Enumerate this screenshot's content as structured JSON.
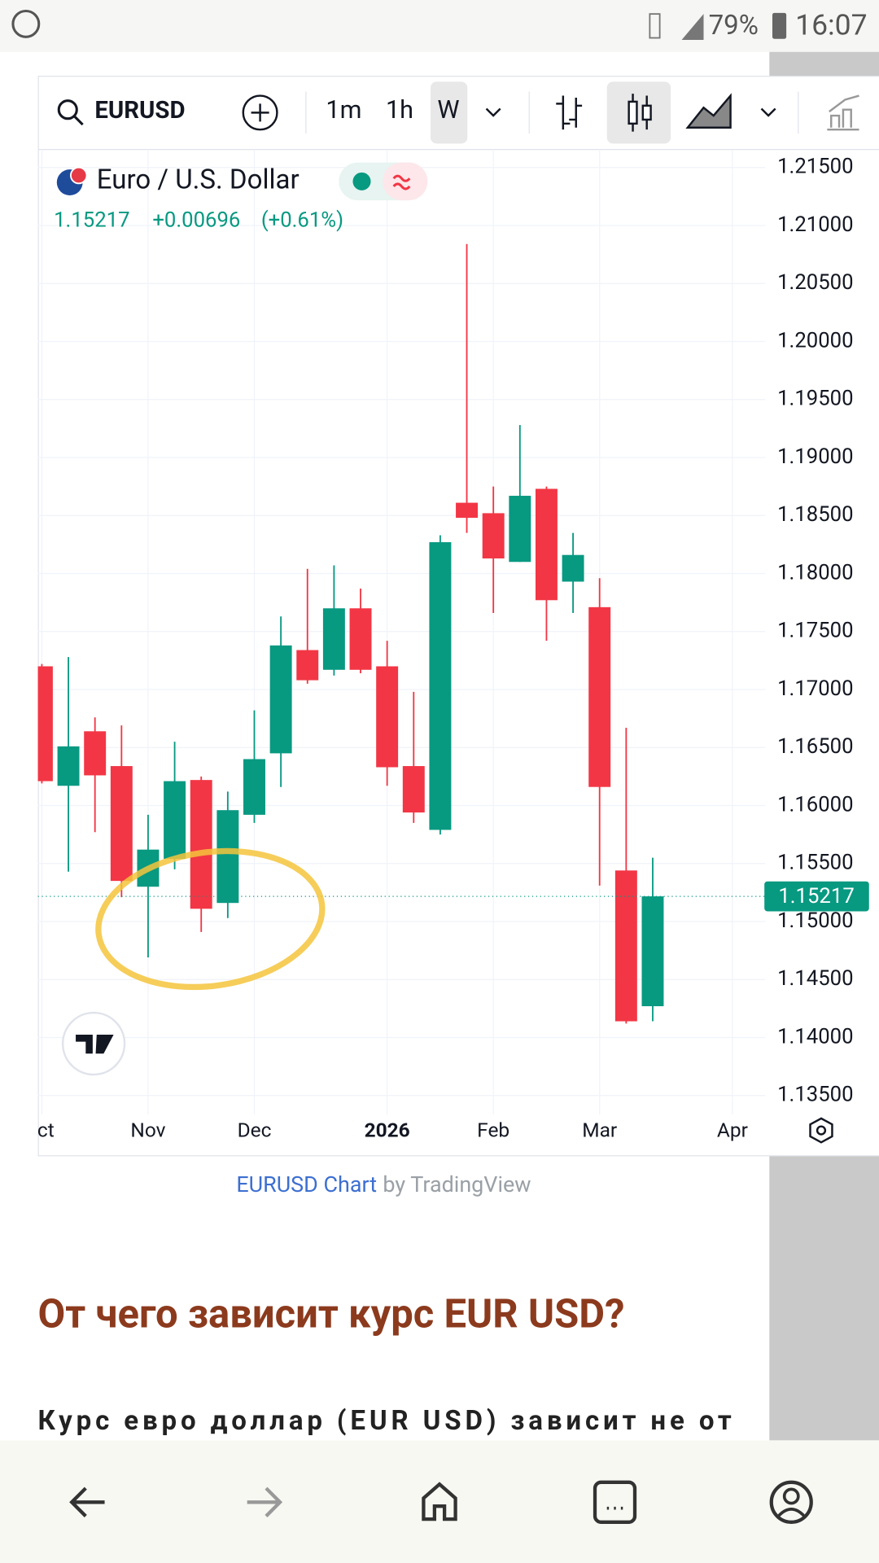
{
  "status_bar": {
    "battery": "79%",
    "time": "16:07"
  },
  "toolbar": {
    "symbol": "EURUSD",
    "intervals": [
      "1m",
      "1h",
      "W"
    ]
  },
  "chart_data": {
    "type": "candlestick",
    "title": "Euro / U.S. Dollar",
    "price_change": "+0.00696",
    "percent_change": "(+0.61%)",
    "categories": [
      "ct",
      null,
      null,
      null,
      "Nov",
      null,
      null,
      null,
      "Dec",
      null,
      null,
      null,
      null,
      "2026",
      null,
      null,
      null,
      "Feb",
      null,
      null,
      null,
      "Mar",
      null,
      null,
      null,
      null,
      "Apr"
    ],
    "open": [
      1.172,
      1.1617,
      1.1664,
      1.1634,
      1.153,
      1.1554,
      1.1622,
      1.1516,
      1.1592,
      1.1645,
      1.1734,
      1.1717,
      1.177,
      1.172,
      1.1634,
      1.1579,
      1.1861,
      1.1852,
      1.181,
      1.1873,
      1.1793,
      1.1771,
      1.1544,
      1.1427,
      null,
      null,
      null
    ],
    "high": [
      1.1722,
      1.1728,
      1.1676,
      1.1669,
      1.1592,
      1.1655,
      1.1625,
      1.1612,
      1.1682,
      1.1763,
      1.1804,
      1.1807,
      1.1787,
      1.1742,
      1.1698,
      1.1833,
      1.2084,
      1.1875,
      1.1928,
      1.1875,
      1.1835,
      1.1796,
      1.1667,
      1.1555,
      null,
      null,
      null
    ],
    "low": [
      1.1619,
      1.1543,
      1.1577,
      1.1521,
      1.1469,
      1.1545,
      1.1491,
      1.1503,
      1.1585,
      1.1616,
      1.1705,
      1.1712,
      1.1714,
      1.1617,
      1.1585,
      1.1575,
      1.1835,
      1.1766,
      1.181,
      1.1742,
      1.1766,
      1.1531,
      1.1412,
      1.1414,
      null,
      null,
      null
    ],
    "close": [
      1.1621,
      1.1651,
      1.1626,
      1.1535,
      1.1562,
      1.1621,
      1.1511,
      1.1596,
      1.164,
      1.1738,
      1.1708,
      1.177,
      1.1717,
      1.1633,
      1.1594,
      1.1827,
      1.1848,
      1.1813,
      1.1867,
      1.1777,
      1.1816,
      1.1616,
      1.1414,
      1.15217,
      null,
      null,
      null
    ],
    "up_color": "#089981",
    "down_color": "#f23645",
    "ylim": [
      1.13337,
      1.21655
    ],
    "yticks": [
      {
        "value": 1.135,
        "label": "1.13500"
      },
      {
        "value": 1.14,
        "label": "1.14000"
      },
      {
        "value": 1.145,
        "label": "1.14500"
      },
      {
        "value": 1.15,
        "label": "1.15000"
      },
      {
        "value": 1.155,
        "label": "1.15500"
      },
      {
        "value": 1.16,
        "label": "1.16000"
      },
      {
        "value": 1.165,
        "label": "1.16500"
      },
      {
        "value": 1.17,
        "label": "1.17000"
      },
      {
        "value": 1.175,
        "label": "1.17500"
      },
      {
        "value": 1.18,
        "label": "1.18000"
      },
      {
        "value": 1.185,
        "label": "1.18500"
      },
      {
        "value": 1.19,
        "label": "1.19000"
      },
      {
        "value": 1.195,
        "label": "1.19500"
      },
      {
        "value": 1.2,
        "label": "1.20000"
      },
      {
        "value": 1.205,
        "label": "1.20500"
      },
      {
        "value": 1.21,
        "label": "1.21000"
      },
      {
        "value": 1.215,
        "label": "1.21500"
      }
    ],
    "grid": true
  },
  "credit": {
    "link": "EURUSD Chart",
    "text": "by TradingView"
  },
  "article": {
    "heading": "От чего зависит курс EUR USD?",
    "paragraph": "Курс евро доллар (EUR USD) зависит не от"
  }
}
